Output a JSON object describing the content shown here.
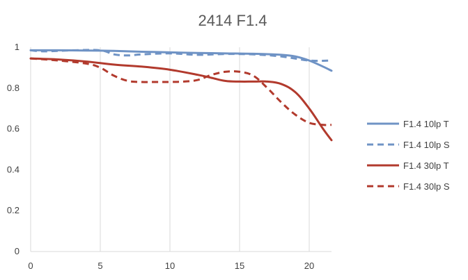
{
  "chart_data": {
    "type": "line",
    "title": "2414 F1.4",
    "xlabel": "",
    "ylabel": "",
    "xlim": [
      0,
      21.6
    ],
    "ylim": [
      0,
      1
    ],
    "x_ticks": [
      "0",
      "5",
      "10",
      "15",
      "20"
    ],
    "y_ticks": [
      "0",
      "0.2",
      "0.4",
      "0.6",
      "0.8",
      "1"
    ],
    "grid": "vertical",
    "legend_position": "right",
    "series": [
      {
        "name": "F1.4 10lp T",
        "color": "#6f93c5",
        "dash": "solid",
        "x": [
          0,
          2,
          4,
          6,
          8,
          10,
          12,
          14,
          16,
          18,
          19,
          20,
          21,
          21.6
        ],
        "y": [
          0.985,
          0.985,
          0.984,
          0.982,
          0.978,
          0.975,
          0.972,
          0.97,
          0.968,
          0.963,
          0.955,
          0.935,
          0.905,
          0.885
        ]
      },
      {
        "name": "F1.4 10lp S",
        "color": "#6f93c5",
        "dash": "dashed",
        "x": [
          0,
          1,
          3,
          5,
          6,
          7,
          8,
          10,
          12,
          14,
          16,
          18,
          20,
          21.6
        ],
        "y": [
          0.985,
          0.98,
          0.985,
          0.985,
          0.965,
          0.96,
          0.965,
          0.97,
          0.963,
          0.967,
          0.965,
          0.955,
          0.935,
          0.935
        ]
      },
      {
        "name": "F1.4 30lp T",
        "color": "#b23a2d",
        "dash": "solid",
        "x": [
          0,
          2,
          4,
          6,
          8,
          10,
          12,
          13,
          14,
          15,
          16,
          17,
          18,
          19,
          20,
          21,
          21.6
        ],
        "y": [
          0.945,
          0.94,
          0.93,
          0.915,
          0.905,
          0.89,
          0.865,
          0.85,
          0.835,
          0.832,
          0.832,
          0.832,
          0.82,
          0.78,
          0.7,
          0.6,
          0.545
        ]
      },
      {
        "name": "F1.4 30lp S",
        "color": "#b23a2d",
        "dash": "dashed",
        "x": [
          0,
          2,
          4,
          5,
          6,
          7,
          8,
          9,
          10,
          11,
          12,
          13,
          14,
          15,
          16,
          17,
          18,
          19,
          20,
          21,
          21.6
        ],
        "y": [
          0.945,
          0.935,
          0.92,
          0.9,
          0.86,
          0.835,
          0.83,
          0.83,
          0.83,
          0.832,
          0.84,
          0.865,
          0.88,
          0.88,
          0.86,
          0.8,
          0.73,
          0.67,
          0.63,
          0.62,
          0.62
        ]
      }
    ]
  }
}
